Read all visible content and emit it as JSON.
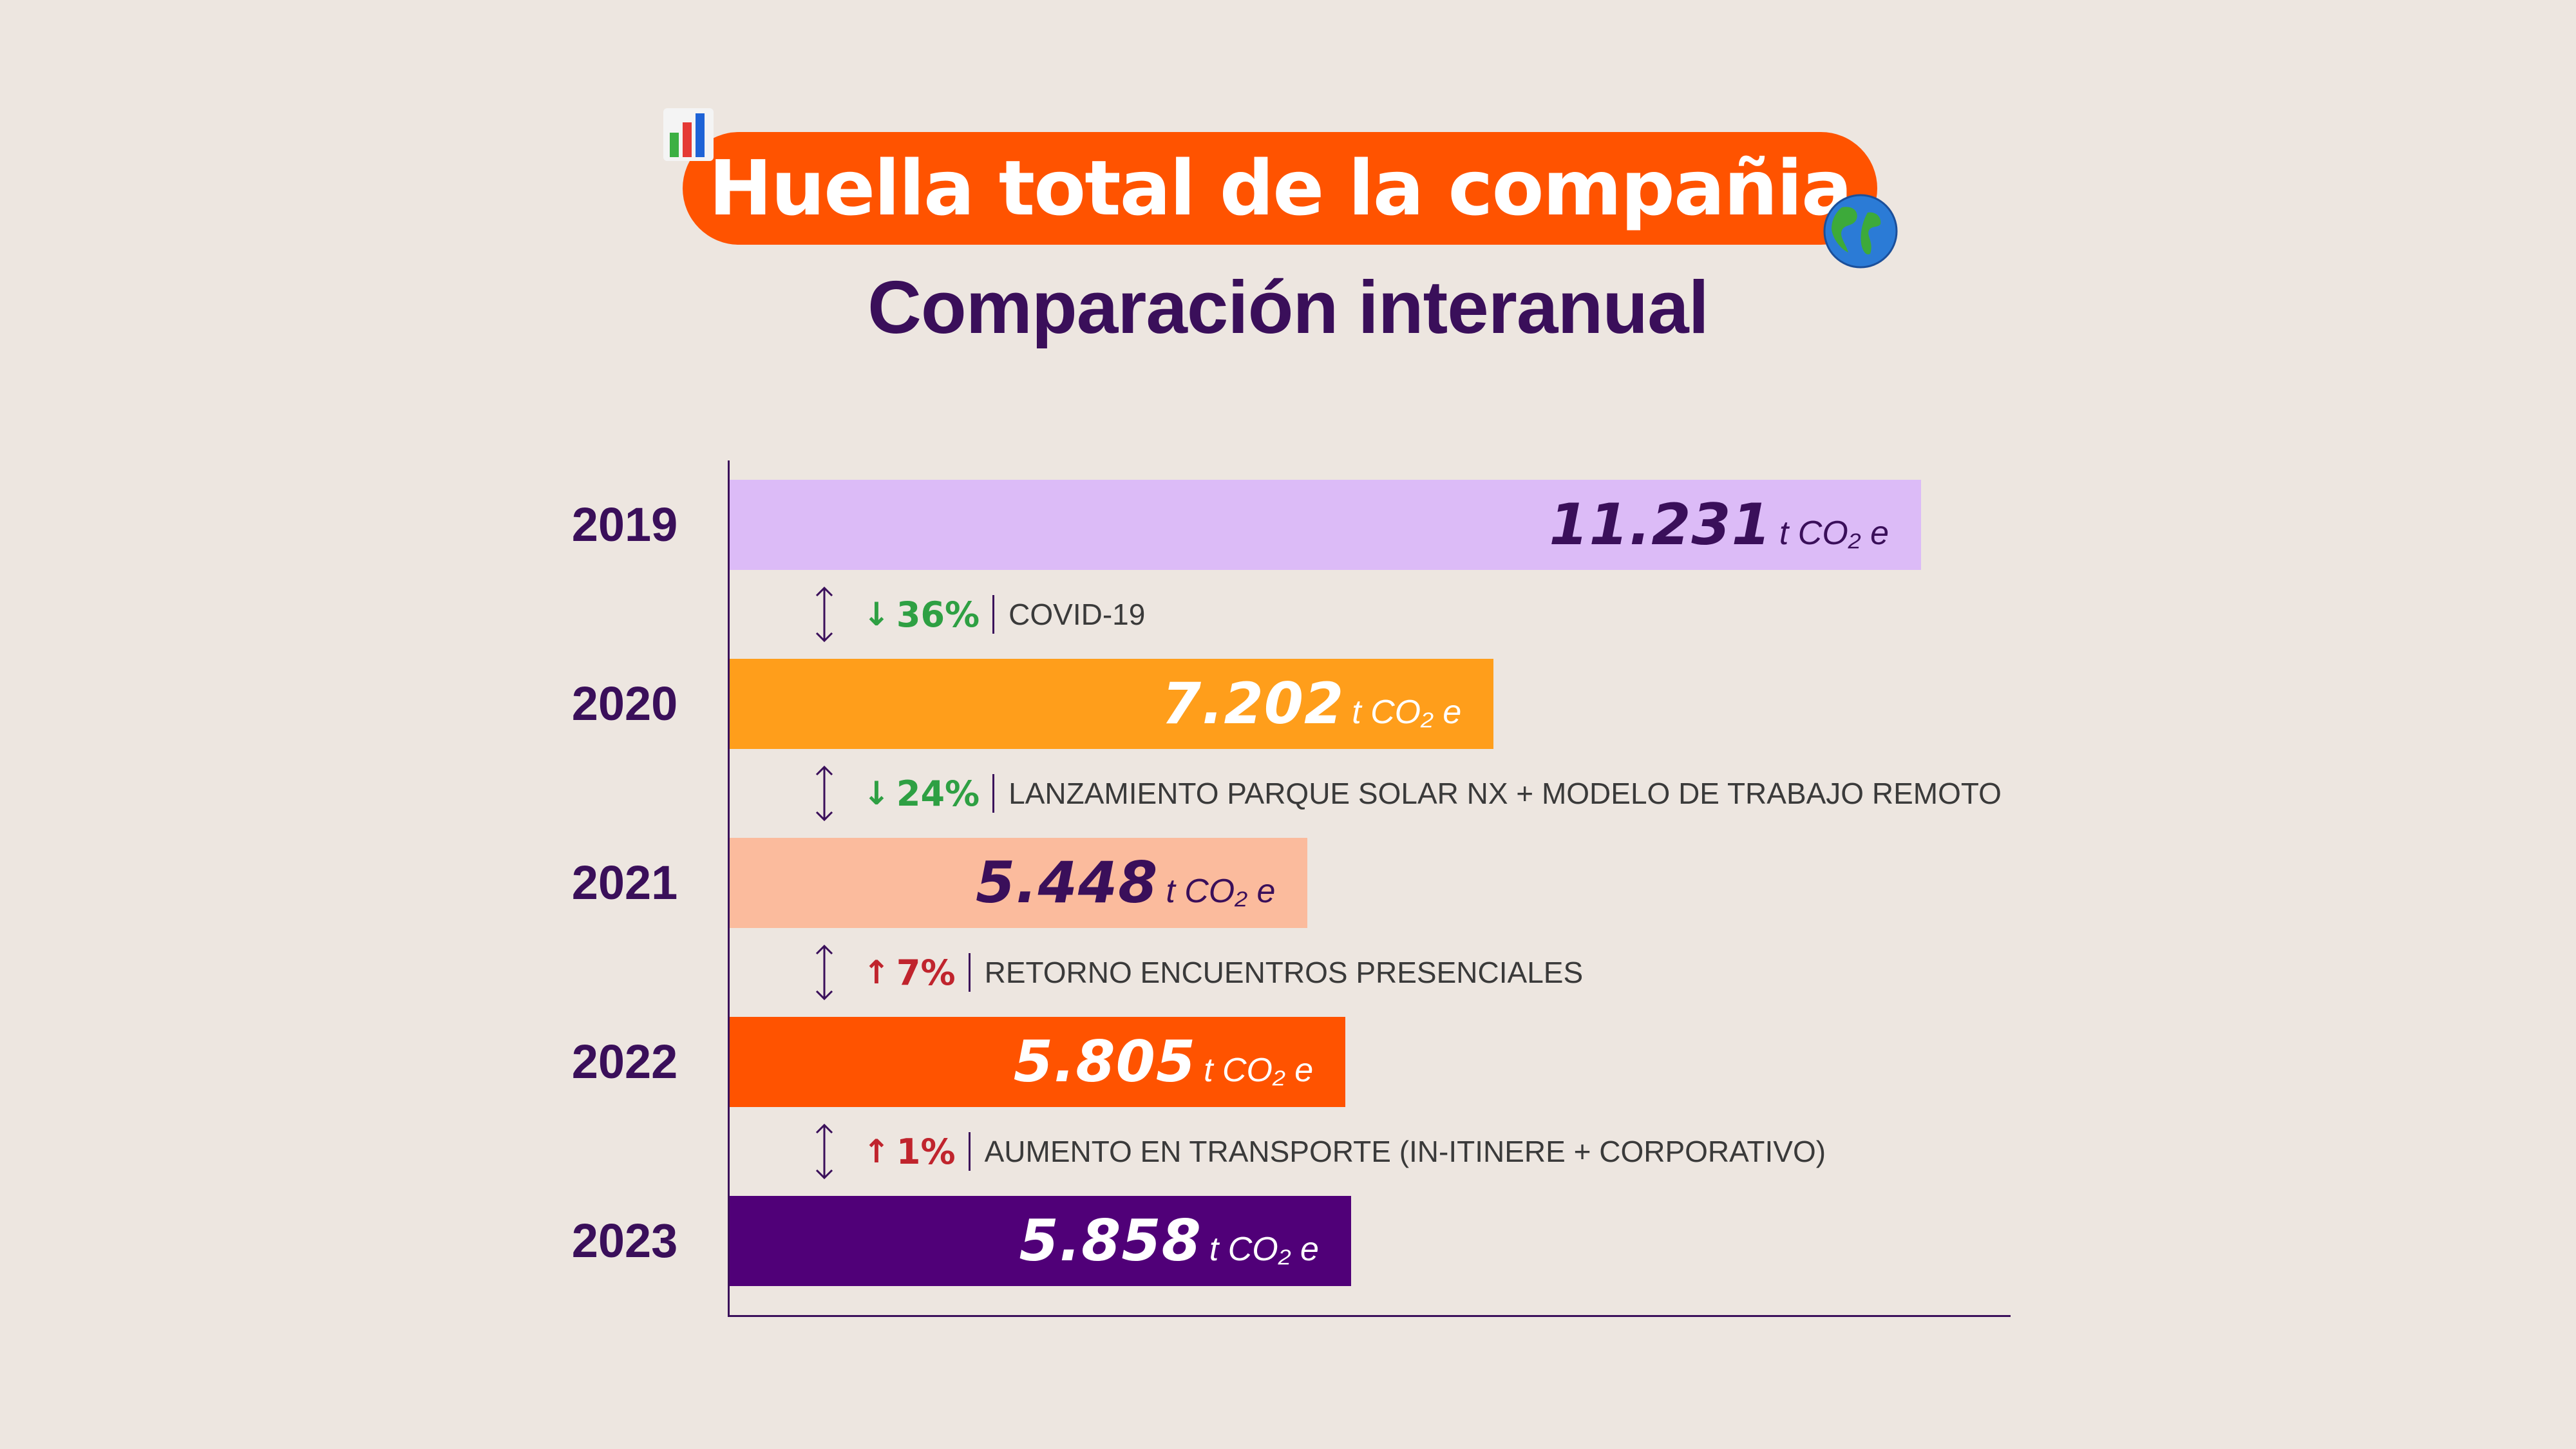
{
  "header": {
    "title": "Huella total de la compañia",
    "subtitle": "Comparación interanual",
    "icons": [
      "bar-chart-icon",
      "globe-icon"
    ]
  },
  "colors": {
    "dark": "#3A0F5A",
    "up": "#C0242D",
    "down": "#2EA043",
    "bar2019": "#DCBBF7",
    "bar2020": "#FF9E1B",
    "bar2021": "#FBBB9D",
    "bar2022": "#FF5300",
    "bar2023": "#500078"
  },
  "chart_data": {
    "type": "bar",
    "orientation": "horizontal",
    "unit": "t CO₂ e",
    "categories": [
      "2019",
      "2020",
      "2021",
      "2022",
      "2023"
    ],
    "values": [
      11231,
      7202,
      5448,
      5805,
      5858
    ],
    "value_labels": [
      "11.231",
      "7.202",
      "5.448",
      "5.805",
      "5.858"
    ],
    "xlim": [
      0,
      12200
    ],
    "changes": [
      {
        "direction": "down",
        "percent": "36%",
        "reason": "COVID-19"
      },
      {
        "direction": "down",
        "percent": "24%",
        "reason": "LANZAMIENTO PARQUE SOLAR NX + MODELO DE TRABAJO REMOTO"
      },
      {
        "direction": "up",
        "percent": "7%",
        "reason": "RETORNO ENCUENTROS PRESENCIALES"
      },
      {
        "direction": "up",
        "percent": "1%",
        "reason": "AUMENTO EN TRANSPORTE (IN-ITINERE + CORPORATIVO)"
      }
    ]
  }
}
